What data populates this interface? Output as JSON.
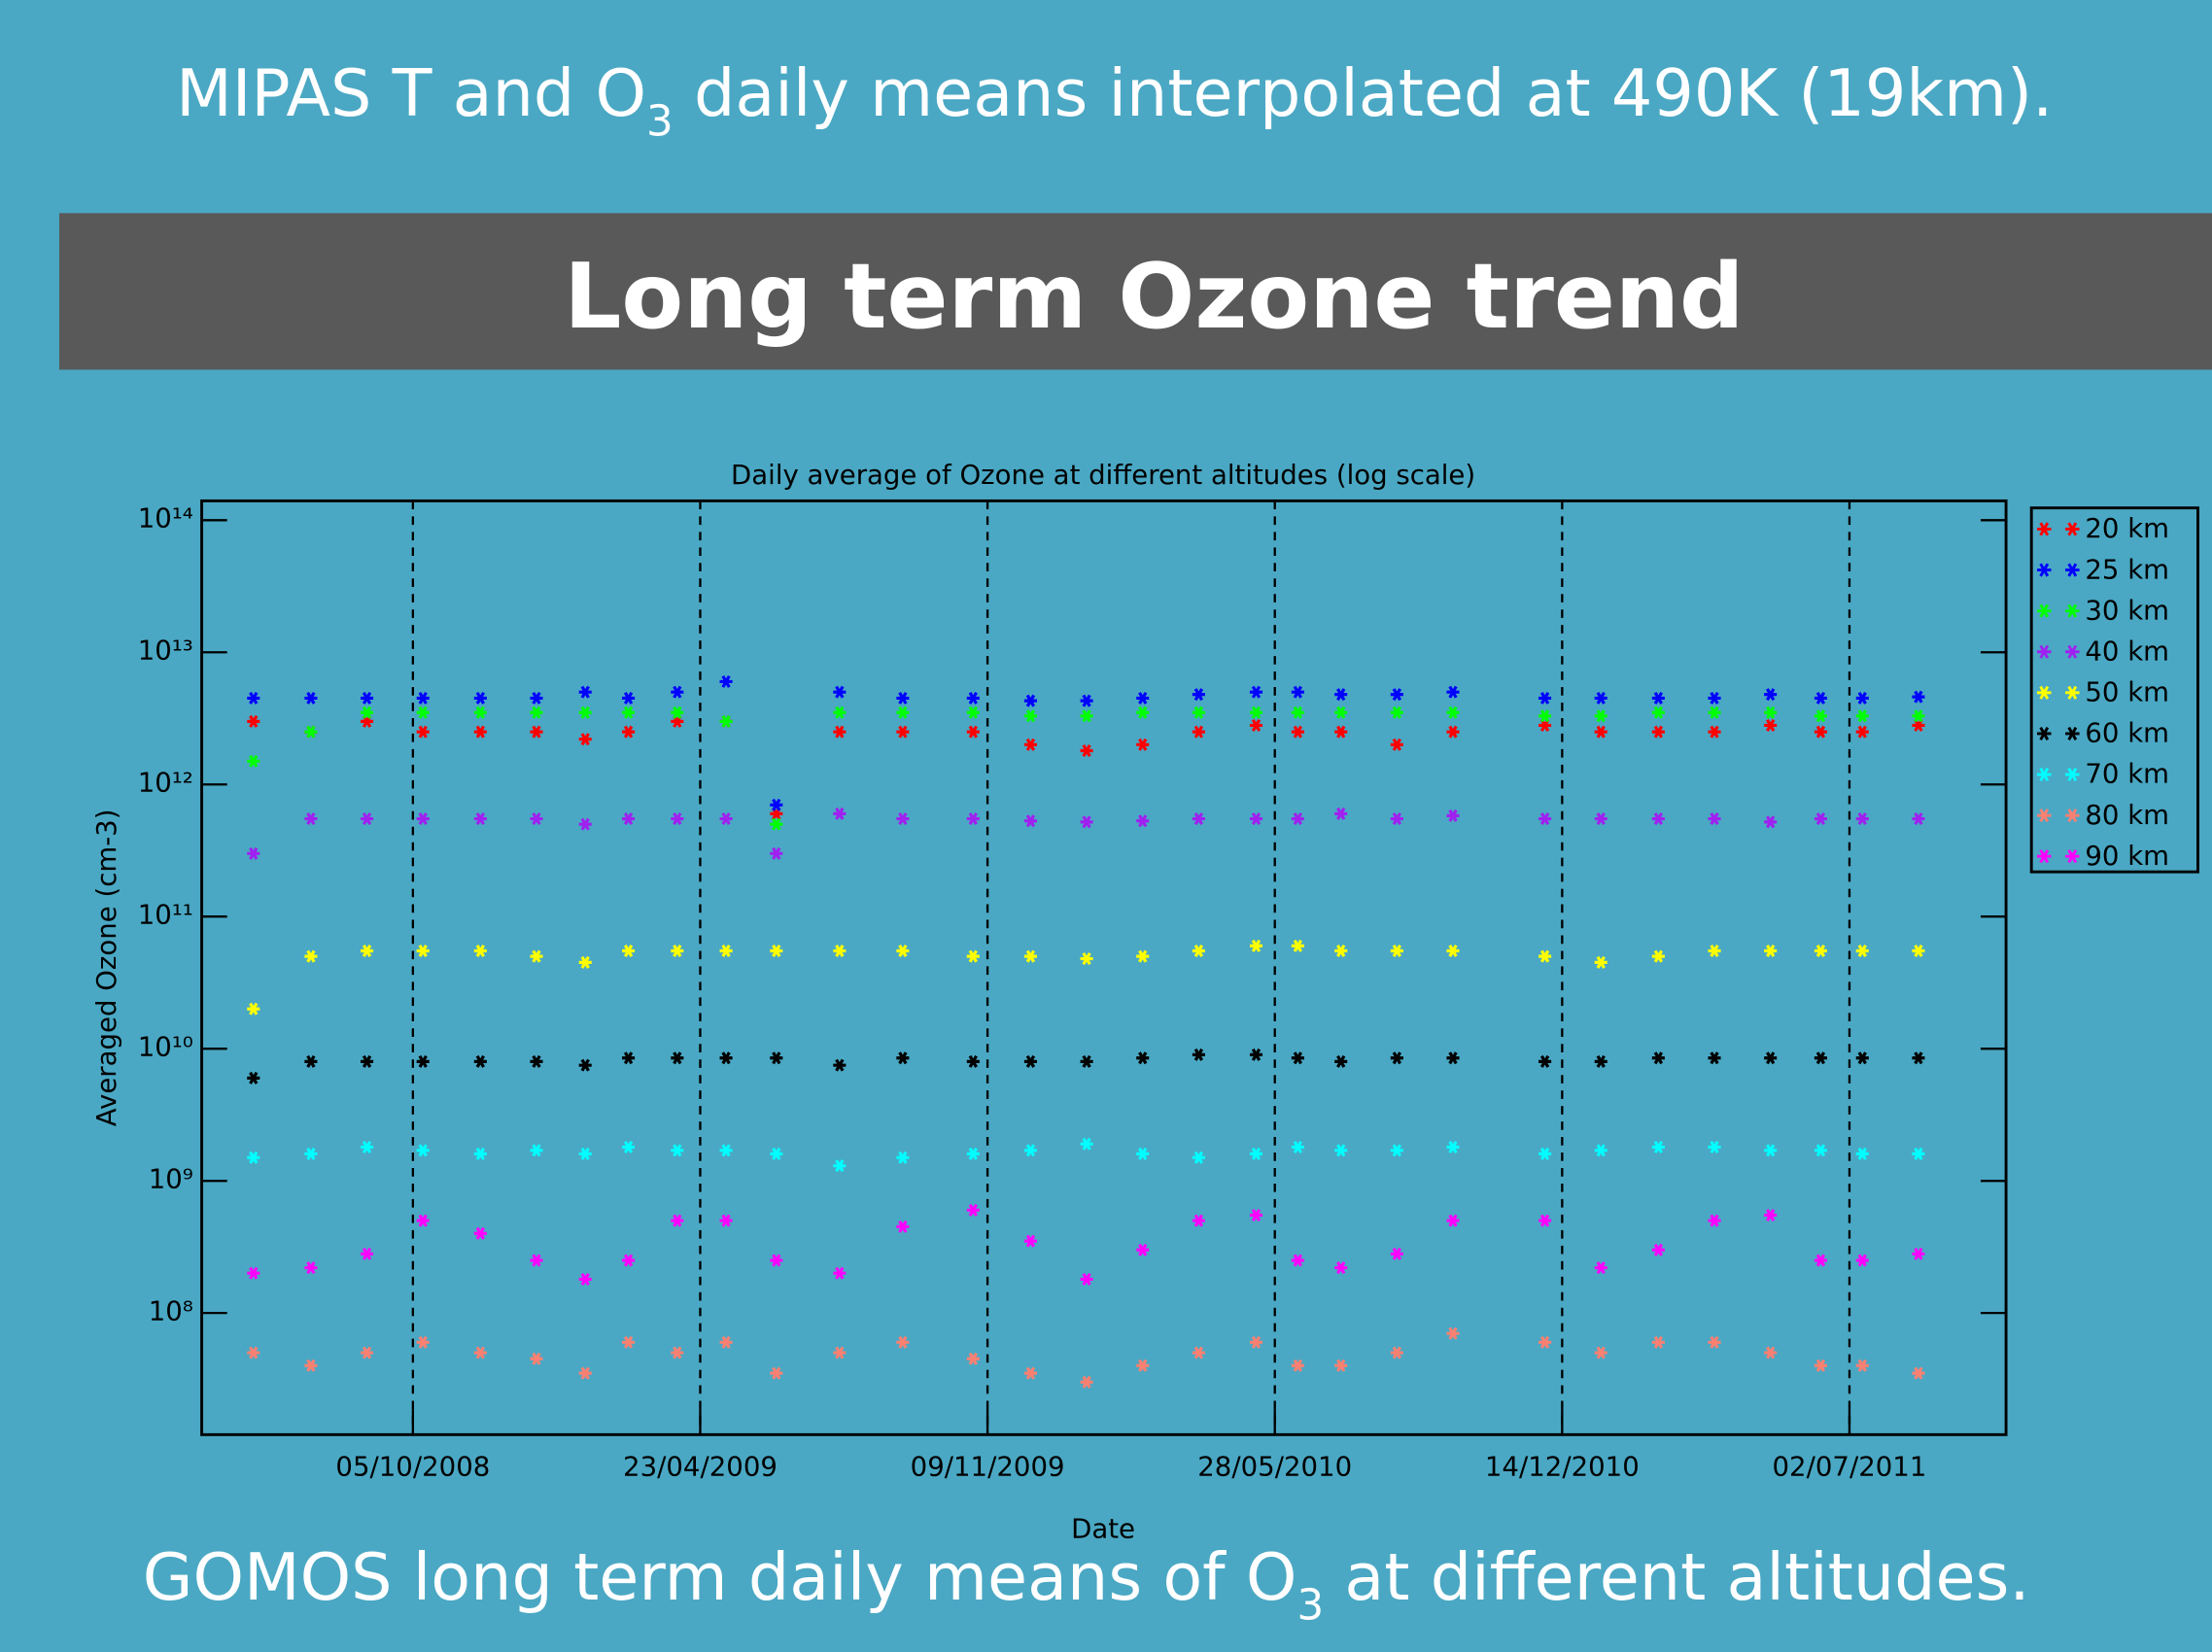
{
  "slide_title": [
    "MIPAS T and O",
    "3",
    " daily means interpolated at 490K (19km)."
  ],
  "header": "Long term Ozone trend",
  "footer": [
    "GOMOS long term daily means of O",
    "3",
    " at different altitudes."
  ],
  "chart_data": {
    "type": "scatter",
    "title": "Daily average of Ozone at different altitudes (log scale)",
    "x_label": "Date",
    "y_label": "Averaged Ozone (cm-3)",
    "log_y": true,
    "xgrid": true,
    "legend": "right",
    "xlim": [
      "2008-05-11",
      "2011-10-19"
    ],
    "xticks": [
      {
        "value": "2008-10-05",
        "label": "05/10/2008"
      },
      {
        "value": "2009-04-23",
        "label": "23/04/2009"
      },
      {
        "value": "2009-11-09",
        "label": "09/11/2009"
      },
      {
        "value": "2010-05-28",
        "label": "28/05/2010"
      },
      {
        "value": "2010-12-14",
        "label": "14/12/2010"
      },
      {
        "value": "2011-07-02",
        "label": "02/07/2011"
      }
    ],
    "ylim": [
      12000000,
      140000000000000
    ],
    "yticks": [
      {
        "value": 100000000,
        "label": "10⁸"
      },
      {
        "value": 1000000000,
        "label": "10⁹"
      },
      {
        "value": 10000000000,
        "label": "10¹⁰"
      },
      {
        "value": 100000000000,
        "label": "10¹¹"
      },
      {
        "value": 1000000000000,
        "label": "10¹²"
      },
      {
        "value": 10000000000000,
        "label": "10¹³"
      },
      {
        "value": 100000000000000,
        "label": "10¹⁴"
      }
    ],
    "x": [
      "2008-06-16",
      "2008-07-26",
      "2008-09-03",
      "2008-10-12",
      "2008-11-21",
      "2008-12-30",
      "2009-02-02",
      "2009-03-04",
      "2009-04-07",
      "2009-05-11",
      "2009-06-15",
      "2009-07-29",
      "2009-09-11",
      "2009-10-30",
      "2009-12-09",
      "2010-01-17",
      "2010-02-25",
      "2010-04-05",
      "2010-05-15",
      "2010-06-13",
      "2010-07-13",
      "2010-08-21",
      "2010-09-29",
      "2010-12-02",
      "2011-01-10",
      "2011-02-19",
      "2011-03-30",
      "2011-05-08",
      "2011-06-12",
      "2011-07-11",
      "2011-08-19"
    ],
    "series": [
      {
        "name": "20 km",
        "color": "#ff0000",
        "values": [
          3000000000000.0,
          2500000000000.0,
          3000000000000.0,
          2500000000000.0,
          2500000000000.0,
          2500000000000.0,
          2200000000000.0,
          2500000000000.0,
          3000000000000.0,
          3000000000000.0,
          600000000000.0,
          2500000000000.0,
          2500000000000.0,
          2500000000000.0,
          2000000000000.0,
          1800000000000.0,
          2000000000000.0,
          2500000000000.0,
          2800000000000.0,
          2500000000000.0,
          2500000000000.0,
          2000000000000.0,
          2500000000000.0,
          2800000000000.0,
          2500000000000.0,
          2500000000000.0,
          2500000000000.0,
          2800000000000.0,
          2500000000000.0,
          2500000000000.0,
          2800000000000.0
        ]
      },
      {
        "name": "25 km",
        "color": "#0000ff",
        "values": [
          4500000000000.0,
          4500000000000.0,
          4500000000000.0,
          4500000000000.0,
          4500000000000.0,
          4500000000000.0,
          5000000000000.0,
          4500000000000.0,
          5000000000000.0,
          6000000000000.0,
          700000000000.0,
          5000000000000.0,
          4500000000000.0,
          4500000000000.0,
          4300000000000.0,
          4300000000000.0,
          4500000000000.0,
          4800000000000.0,
          5000000000000.0,
          5000000000000.0,
          4800000000000.0,
          4800000000000.0,
          5000000000000.0,
          4500000000000.0,
          4500000000000.0,
          4500000000000.0,
          4500000000000.0,
          4800000000000.0,
          4500000000000.0,
          4500000000000.0,
          4600000000000.0
        ]
      },
      {
        "name": "30 km",
        "color": "#00ff00",
        "values": [
          1500000000000.0,
          2500000000000.0,
          3500000000000.0,
          3500000000000.0,
          3500000000000.0,
          3500000000000.0,
          3500000000000.0,
          3500000000000.0,
          3500000000000.0,
          3000000000000.0,
          500000000000.0,
          3500000000000.0,
          3500000000000.0,
          3500000000000.0,
          3300000000000.0,
          3300000000000.0,
          3500000000000.0,
          3500000000000.0,
          3500000000000.0,
          3500000000000.0,
          3500000000000.0,
          3500000000000.0,
          3500000000000.0,
          3300000000000.0,
          3300000000000.0,
          3500000000000.0,
          3500000000000.0,
          3500000000000.0,
          3300000000000.0,
          3300000000000.0,
          3300000000000.0
        ]
      },
      {
        "name": "40 km",
        "color": "#a020f0",
        "values": [
          300000000000.0,
          550000000000.0,
          550000000000.0,
          550000000000.0,
          550000000000.0,
          550000000000.0,
          500000000000.0,
          550000000000.0,
          550000000000.0,
          550000000000.0,
          300000000000.0,
          600000000000.0,
          550000000000.0,
          550000000000.0,
          530000000000.0,
          520000000000.0,
          530000000000.0,
          550000000000.0,
          550000000000.0,
          550000000000.0,
          600000000000.0,
          550000000000.0,
          580000000000.0,
          550000000000.0,
          550000000000.0,
          550000000000.0,
          550000000000.0,
          520000000000.0,
          550000000000.0,
          550000000000.0,
          550000000000.0
        ]
      },
      {
        "name": "50 km",
        "color": "#ffff00",
        "values": [
          20000000000.0,
          50000000000.0,
          55000000000.0,
          55000000000.0,
          55000000000.0,
          50000000000.0,
          45000000000.0,
          55000000000.0,
          55000000000.0,
          55000000000.0,
          55000000000.0,
          55000000000.0,
          55000000000.0,
          50000000000.0,
          50000000000.0,
          48000000000.0,
          50000000000.0,
          55000000000.0,
          60000000000.0,
          60000000000.0,
          55000000000.0,
          55000000000.0,
          55000000000.0,
          50000000000.0,
          45000000000.0,
          50000000000.0,
          55000000000.0,
          55000000000.0,
          55000000000.0,
          55000000000.0,
          55000000000.0
        ]
      },
      {
        "name": "60 km",
        "color": "#000000",
        "values": [
          6000000000.0,
          8000000000.0,
          8000000000.0,
          8000000000.0,
          8000000000.0,
          8000000000.0,
          7500000000.0,
          8500000000.0,
          8500000000.0,
          8500000000.0,
          8500000000.0,
          7500000000.0,
          8500000000.0,
          8000000000.0,
          8000000000.0,
          8000000000.0,
          8500000000.0,
          9000000000.0,
          9000000000.0,
          8500000000.0,
          8000000000.0,
          8500000000.0,
          8500000000.0,
          8000000000.0,
          8000000000.0,
          8500000000.0,
          8500000000.0,
          8500000000.0,
          8500000000.0,
          8500000000.0,
          8500000000.0
        ]
      },
      {
        "name": "70 km",
        "color": "#00ffff",
        "values": [
          1500000000.0,
          1600000000.0,
          1800000000.0,
          1700000000.0,
          1600000000.0,
          1700000000.0,
          1600000000.0,
          1800000000.0,
          1700000000.0,
          1700000000.0,
          1600000000.0,
          1300000000.0,
          1500000000.0,
          1600000000.0,
          1700000000.0,
          1900000000.0,
          1600000000.0,
          1500000000.0,
          1600000000.0,
          1800000000.0,
          1700000000.0,
          1700000000.0,
          1800000000.0,
          1600000000.0,
          1700000000.0,
          1800000000.0,
          1800000000.0,
          1700000000.0,
          1700000000.0,
          1600000000.0,
          1600000000.0
        ]
      },
      {
        "name": "80 km",
        "color": "#fa8072",
        "values": [
          50000000.0,
          40000000.0,
          50000000.0,
          60000000.0,
          50000000.0,
          45000000.0,
          35000000.0,
          60000000.0,
          50000000.0,
          60000000.0,
          35000000.0,
          50000000.0,
          60000000.0,
          45000000.0,
          35000000.0,
          30000000.0,
          40000000.0,
          50000000.0,
          60000000.0,
          40000000.0,
          40000000.0,
          50000000.0,
          70000000.0,
          60000000.0,
          50000000.0,
          60000000.0,
          60000000.0,
          50000000.0,
          40000000.0,
          40000000.0,
          35000000.0
        ]
      },
      {
        "name": "90 km",
        "color": "#ff00ff",
        "values": [
          200000000.0,
          220000000.0,
          280000000.0,
          500000000.0,
          400000000.0,
          250000000.0,
          180000000.0,
          250000000.0,
          500000000.0,
          500000000.0,
          250000000.0,
          200000000.0,
          450000000.0,
          600000000.0,
          350000000.0,
          180000000.0,
          300000000.0,
          500000000.0,
          550000000.0,
          250000000.0,
          220000000.0,
          280000000.0,
          500000000.0,
          500000000.0,
          220000000.0,
          300000000.0,
          500000000.0,
          550000000.0,
          250000000.0,
          250000000.0,
          280000000.0
        ]
      }
    ]
  }
}
